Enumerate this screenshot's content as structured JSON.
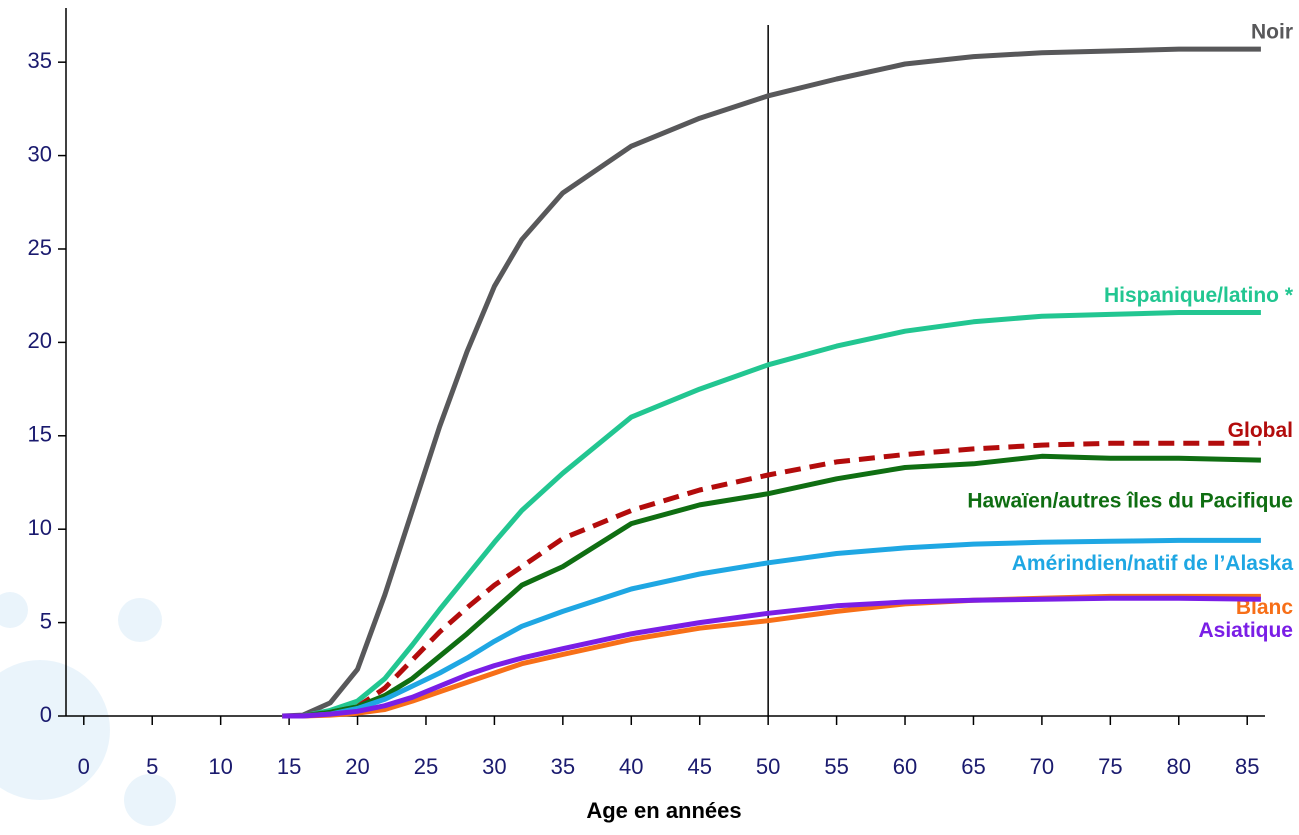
{
  "chart_data": {
    "type": "line",
    "x_label": "Age en années",
    "x": [
      14.5,
      16,
      18,
      20,
      22,
      24,
      26,
      28,
      30,
      32,
      35,
      40,
      45,
      50,
      55,
      60,
      65,
      70,
      75,
      80,
      86
    ],
    "xlim": [
      -1.3,
      86.3
    ],
    "xticks": [
      0,
      5,
      10,
      15,
      20,
      25,
      30,
      35,
      40,
      45,
      50,
      55,
      60,
      65,
      70,
      75,
      80,
      85
    ],
    "ylim": [
      0,
      37.9
    ],
    "yticks": [
      0,
      5,
      10,
      15,
      20,
      25,
      30,
      35
    ],
    "vline": 50,
    "series": [
      {
        "name": "Noir",
        "color": "#58585a",
        "values": [
          0,
          0.05,
          0.7,
          2.5,
          6.5,
          11,
          15.5,
          19.5,
          23,
          25.5,
          28,
          30.5,
          32,
          33.2,
          34.1,
          34.9,
          35.3,
          35.5,
          35.6,
          35.7,
          35.7
        ]
      },
      {
        "name": "Hispanique/latino *",
        "color": "#22c691",
        "values": [
          0,
          0,
          0.3,
          0.8,
          2,
          3.8,
          5.7,
          7.5,
          9.3,
          11,
          13,
          16,
          17.5,
          18.8,
          19.8,
          20.6,
          21.1,
          21.4,
          21.5,
          21.6,
          21.6
        ]
      },
      {
        "name": "Global",
        "color": "#b30c0c",
        "dashed": true,
        "values": [
          0,
          0,
          0.2,
          0.5,
          1.5,
          3,
          4.5,
          5.8,
          7,
          8,
          9.5,
          11,
          12.1,
          12.9,
          13.6,
          14,
          14.3,
          14.5,
          14.6,
          14.6,
          14.6
        ]
      },
      {
        "name": "Hawaïen/autres îles du Pacifique",
        "color": "#0f6e12",
        "values": [
          0,
          0,
          0.2,
          0.5,
          1.1,
          2,
          3.2,
          4.4,
          5.7,
          7,
          8,
          10.3,
          11.3,
          11.9,
          12.7,
          13.3,
          13.5,
          13.9,
          13.8,
          13.8,
          13.7
        ]
      },
      {
        "name": "Amérindien/natif de l’Alaska",
        "color": "#1fa7e3",
        "values": [
          0,
          0,
          0.1,
          0.4,
          0.9,
          1.6,
          2.3,
          3.1,
          4,
          4.8,
          5.6,
          6.8,
          7.6,
          8.2,
          8.7,
          9,
          9.2,
          9.3,
          9.35,
          9.4,
          9.4
        ]
      },
      {
        "name": "Blanc",
        "color": "#f76f18",
        "values": [
          0,
          0,
          0.05,
          0.15,
          0.35,
          0.8,
          1.3,
          1.8,
          2.3,
          2.8,
          3.3,
          4.1,
          4.7,
          5.1,
          5.6,
          6,
          6.2,
          6.3,
          6.4,
          6.4,
          6.4
        ]
      },
      {
        "name": "Asiatique",
        "color": "#7a1ee6",
        "values": [
          0,
          0,
          0.1,
          0.25,
          0.55,
          1,
          1.6,
          2.2,
          2.7,
          3.1,
          3.6,
          4.4,
          5,
          5.5,
          5.9,
          6.1,
          6.2,
          6.25,
          6.3,
          6.3,
          6.25
        ]
      }
    ]
  }
}
